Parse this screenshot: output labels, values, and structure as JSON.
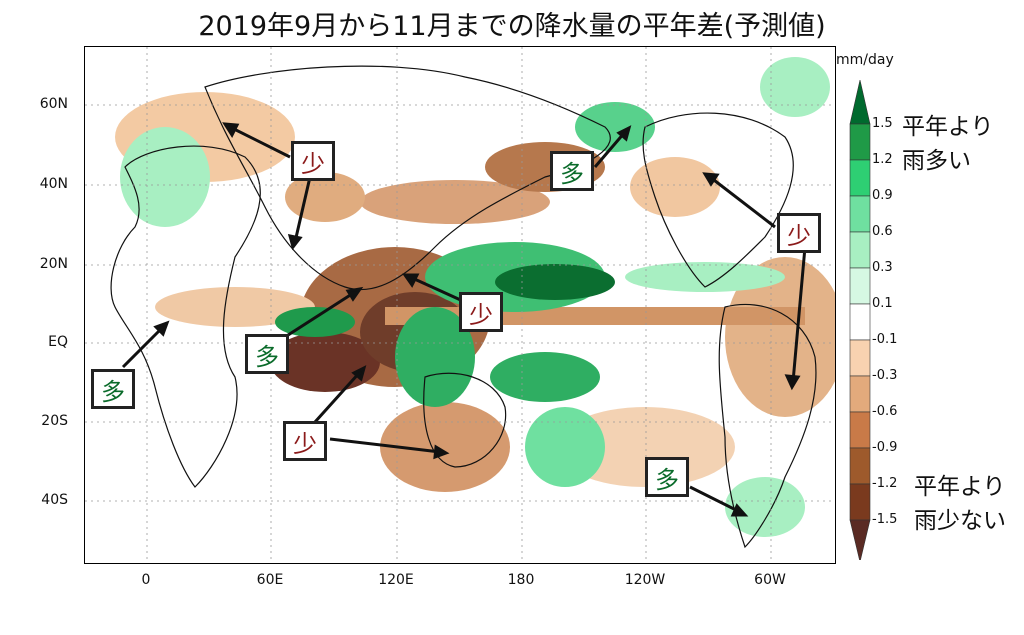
{
  "title": "2019年9月から11月までの降水量の平年差(予測値)",
  "lat_labels": [
    "60N",
    "40N",
    "20N",
    "EQ",
    "20S",
    "40S"
  ],
  "lon_labels": [
    "0",
    "60E",
    "120E",
    "180",
    "120W",
    "60W"
  ],
  "colorbar": {
    "unit": "mm/day",
    "ticks": [
      "1.5",
      "1.2",
      "0.9",
      "0.6",
      "0.3",
      "0.1",
      "-0.1",
      "-0.3",
      "-0.6",
      "-0.9",
      "-1.2",
      "-1.5"
    ],
    "colors": [
      "#006a2e",
      "#1f9a47",
      "#2ecf73",
      "#6fe0a0",
      "#a8efc2",
      "#d6f8e3",
      "#ffffff",
      "#f8d2b0",
      "#e3aa7c",
      "#c97a48",
      "#9e5a2c",
      "#7a3a1e",
      "#5a2b24"
    ],
    "wet_label": "平年より雨多い",
    "dry_label": "平年より雨少ない",
    "wet_line1": "平年より",
    "wet_line2": "雨多い",
    "dry_line1": "平年より",
    "dry_line2": "雨少ない"
  },
  "annotations": {
    "less": "少",
    "more": "多"
  }
}
